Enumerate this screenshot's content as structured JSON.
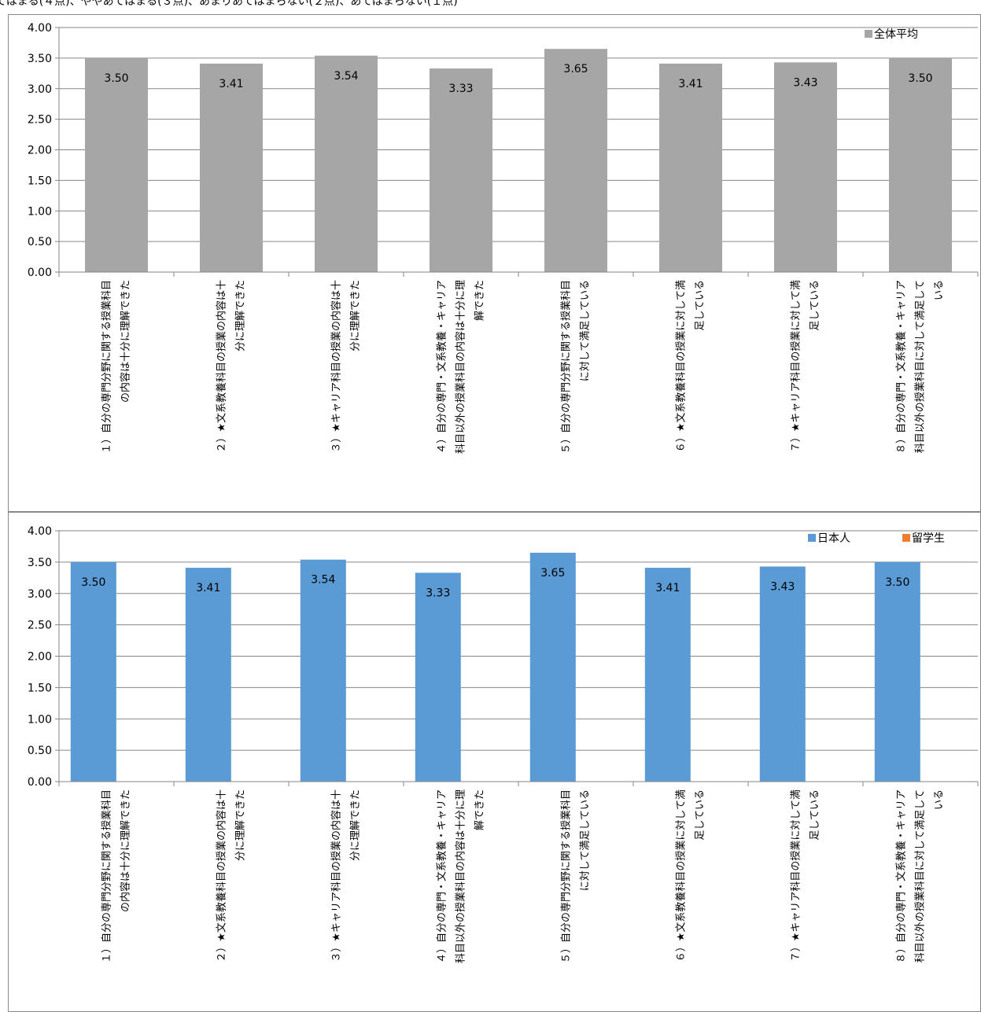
{
  "header": {
    "text": "てはまる(４点)、ややあてはまる(３点)、あまりあてはまらない(２点)、あてはまらない(１点)"
  },
  "colors": {
    "overall": "#a6a6a6",
    "japanese": "#5b9bd5",
    "international": "#ed7d31",
    "gridline": "#868686",
    "axis": "#868686"
  },
  "chart_data": [
    {
      "type": "bar",
      "categories": [
        "１）自分の専門分野に関する授業科目の内容は十分に理解できた",
        "２）★文系教養科目の授業の内容は十分に理解できた",
        "３）★キャリア科目の授業の内容は十分に理解できた",
        "４）自分の専門・文系教養・キャリア科目以外の授業科目の内容は十分に理解できた",
        "５）自分の専門分野に関する授業科目に対して満足している",
        "６）★文系教養科目の授業に対して満足している",
        "７）★キャリア科目の授業に対して満足している",
        "８）自分の専門・文系教養・キャリア科目以外の授業科目に対して満足している"
      ],
      "category_lines": [
        [
          "１）自分の専門分野に関する授業科目",
          "の内容は十分に理解できた"
        ],
        [
          "２）★文系教養科目の授業の内容は十",
          "分に理解できた"
        ],
        [
          "３）★キャリア科目の授業の内容は十",
          "分に理解できた"
        ],
        [
          "４）自分の専門・文系教養・キャリア",
          "科目以外の授業科目の内容は十分に理",
          "解できた"
        ],
        [
          "５）自分の専門分野に関する授業科目",
          "に対して満足している"
        ],
        [
          "６）★文系教養科目の授業に対して満",
          "足している"
        ],
        [
          "７）★キャリア科目の授業に対して満",
          "足している"
        ],
        [
          "８）自分の専門・文系教養・キャリア",
          "科目以外の授業科目に対して満足して",
          "いる"
        ]
      ],
      "series": [
        {
          "name": "全体平均",
          "values": [
            3.5,
            3.41,
            3.54,
            3.33,
            3.65,
            3.41,
            3.43,
            3.5
          ]
        }
      ],
      "value_labels": [
        "3.50",
        "3.41",
        "3.54",
        "3.33",
        "3.65",
        "3.41",
        "3.43",
        "3.50"
      ],
      "y_ticks": [
        "0.00",
        "0.50",
        "1.00",
        "1.50",
        "2.00",
        "2.50",
        "3.00",
        "3.50",
        "4.00"
      ],
      "ylim": [
        0,
        4
      ],
      "grid": true,
      "legend": "top-right"
    },
    {
      "type": "bar",
      "categories": [
        "１）自分の専門分野に関する授業科目の内容は十分に理解できた",
        "２）★文系教養科目の授業の内容は十分に理解できた",
        "３）★キャリア科目の授業の内容は十分に理解できた",
        "４）自分の専門・文系教養・キャリア科目以外の授業科目の内容は十分に理解できた",
        "５）自分の専門分野に関する授業科目に対して満足している",
        "６）★文系教養科目の授業に対して満足している",
        "７）★キャリア科目の授業に対して満足している",
        "８）自分の専門・文系教養・キャリア科目以外の授業科目に対して満足している"
      ],
      "category_lines": [
        [
          "１）自分の専門分野に関する授業科目",
          "の内容は十分に理解できた"
        ],
        [
          "２）★文系教養科目の授業の内容は十",
          "分に理解できた"
        ],
        [
          "３）★キャリア科目の授業の内容は十",
          "分に理解できた"
        ],
        [
          "４）自分の専門・文系教養・キャリア",
          "科目以外の授業科目の内容は十分に理",
          "解できた"
        ],
        [
          "５）自分の専門分野に関する授業科目",
          "に対して満足している"
        ],
        [
          "６）★文系教養科目の授業に対して満",
          "足している"
        ],
        [
          "７）★キャリア科目の授業に対して満",
          "足している"
        ],
        [
          "８）自分の専門・文系教養・キャリア",
          "科目以外の授業科目に対して満足して",
          "いる"
        ]
      ],
      "series": [
        {
          "name": "日本人",
          "values": [
            3.5,
            3.41,
            3.54,
            3.33,
            3.65,
            3.41,
            3.43,
            3.5
          ]
        },
        {
          "name": "留学生",
          "values": [
            0,
            0,
            0,
            0,
            0,
            0,
            0,
            0
          ]
        }
      ],
      "value_labels": [
        "3.50",
        "3.41",
        "3.54",
        "3.33",
        "3.65",
        "3.41",
        "3.43",
        "3.50"
      ],
      "y_ticks": [
        "0.00",
        "0.50",
        "1.00",
        "1.50",
        "2.00",
        "2.50",
        "3.00",
        "3.50",
        "4.00"
      ],
      "ylim": [
        0,
        4
      ],
      "grid": true,
      "legend": "top-right"
    }
  ]
}
